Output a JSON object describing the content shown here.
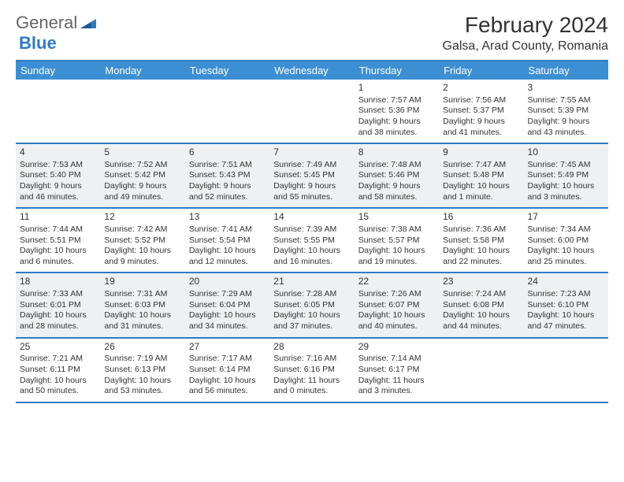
{
  "logo": {
    "part1": "General",
    "part2": "Blue"
  },
  "title": "February 2024",
  "location": "Galsa, Arad County, Romania",
  "colors": {
    "header_bg": "#3d8fd4",
    "border": "#2e7bc4",
    "alt_row": "#eef1f3",
    "text": "#333333",
    "logo_gray": "#666666",
    "logo_blue": "#2e7bc4"
  },
  "day_names": [
    "Sunday",
    "Monday",
    "Tuesday",
    "Wednesday",
    "Thursday",
    "Friday",
    "Saturday"
  ],
  "weeks": [
    {
      "alt": false,
      "cells": [
        {
          "day": "",
          "sunrise": "",
          "sunset": "",
          "daylight1": "",
          "daylight2": ""
        },
        {
          "day": "",
          "sunrise": "",
          "sunset": "",
          "daylight1": "",
          "daylight2": ""
        },
        {
          "day": "",
          "sunrise": "",
          "sunset": "",
          "daylight1": "",
          "daylight2": ""
        },
        {
          "day": "",
          "sunrise": "",
          "sunset": "",
          "daylight1": "",
          "daylight2": ""
        },
        {
          "day": "1",
          "sunrise": "Sunrise: 7:57 AM",
          "sunset": "Sunset: 5:36 PM",
          "daylight1": "Daylight: 9 hours",
          "daylight2": "and 38 minutes."
        },
        {
          "day": "2",
          "sunrise": "Sunrise: 7:56 AM",
          "sunset": "Sunset: 5:37 PM",
          "daylight1": "Daylight: 9 hours",
          "daylight2": "and 41 minutes."
        },
        {
          "day": "3",
          "sunrise": "Sunrise: 7:55 AM",
          "sunset": "Sunset: 5:39 PM",
          "daylight1": "Daylight: 9 hours",
          "daylight2": "and 43 minutes."
        }
      ]
    },
    {
      "alt": true,
      "cells": [
        {
          "day": "4",
          "sunrise": "Sunrise: 7:53 AM",
          "sunset": "Sunset: 5:40 PM",
          "daylight1": "Daylight: 9 hours",
          "daylight2": "and 46 minutes."
        },
        {
          "day": "5",
          "sunrise": "Sunrise: 7:52 AM",
          "sunset": "Sunset: 5:42 PM",
          "daylight1": "Daylight: 9 hours",
          "daylight2": "and 49 minutes."
        },
        {
          "day": "6",
          "sunrise": "Sunrise: 7:51 AM",
          "sunset": "Sunset: 5:43 PM",
          "daylight1": "Daylight: 9 hours",
          "daylight2": "and 52 minutes."
        },
        {
          "day": "7",
          "sunrise": "Sunrise: 7:49 AM",
          "sunset": "Sunset: 5:45 PM",
          "daylight1": "Daylight: 9 hours",
          "daylight2": "and 55 minutes."
        },
        {
          "day": "8",
          "sunrise": "Sunrise: 7:48 AM",
          "sunset": "Sunset: 5:46 PM",
          "daylight1": "Daylight: 9 hours",
          "daylight2": "and 58 minutes."
        },
        {
          "day": "9",
          "sunrise": "Sunrise: 7:47 AM",
          "sunset": "Sunset: 5:48 PM",
          "daylight1": "Daylight: 10 hours",
          "daylight2": "and 1 minute."
        },
        {
          "day": "10",
          "sunrise": "Sunrise: 7:45 AM",
          "sunset": "Sunset: 5:49 PM",
          "daylight1": "Daylight: 10 hours",
          "daylight2": "and 3 minutes."
        }
      ]
    },
    {
      "alt": false,
      "cells": [
        {
          "day": "11",
          "sunrise": "Sunrise: 7:44 AM",
          "sunset": "Sunset: 5:51 PM",
          "daylight1": "Daylight: 10 hours",
          "daylight2": "and 6 minutes."
        },
        {
          "day": "12",
          "sunrise": "Sunrise: 7:42 AM",
          "sunset": "Sunset: 5:52 PM",
          "daylight1": "Daylight: 10 hours",
          "daylight2": "and 9 minutes."
        },
        {
          "day": "13",
          "sunrise": "Sunrise: 7:41 AM",
          "sunset": "Sunset: 5:54 PM",
          "daylight1": "Daylight: 10 hours",
          "daylight2": "and 12 minutes."
        },
        {
          "day": "14",
          "sunrise": "Sunrise: 7:39 AM",
          "sunset": "Sunset: 5:55 PM",
          "daylight1": "Daylight: 10 hours",
          "daylight2": "and 16 minutes."
        },
        {
          "day": "15",
          "sunrise": "Sunrise: 7:38 AM",
          "sunset": "Sunset: 5:57 PM",
          "daylight1": "Daylight: 10 hours",
          "daylight2": "and 19 minutes."
        },
        {
          "day": "16",
          "sunrise": "Sunrise: 7:36 AM",
          "sunset": "Sunset: 5:58 PM",
          "daylight1": "Daylight: 10 hours",
          "daylight2": "and 22 minutes."
        },
        {
          "day": "17",
          "sunrise": "Sunrise: 7:34 AM",
          "sunset": "Sunset: 6:00 PM",
          "daylight1": "Daylight: 10 hours",
          "daylight2": "and 25 minutes."
        }
      ]
    },
    {
      "alt": true,
      "cells": [
        {
          "day": "18",
          "sunrise": "Sunrise: 7:33 AM",
          "sunset": "Sunset: 6:01 PM",
          "daylight1": "Daylight: 10 hours",
          "daylight2": "and 28 minutes."
        },
        {
          "day": "19",
          "sunrise": "Sunrise: 7:31 AM",
          "sunset": "Sunset: 6:03 PM",
          "daylight1": "Daylight: 10 hours",
          "daylight2": "and 31 minutes."
        },
        {
          "day": "20",
          "sunrise": "Sunrise: 7:29 AM",
          "sunset": "Sunset: 6:04 PM",
          "daylight1": "Daylight: 10 hours",
          "daylight2": "and 34 minutes."
        },
        {
          "day": "21",
          "sunrise": "Sunrise: 7:28 AM",
          "sunset": "Sunset: 6:05 PM",
          "daylight1": "Daylight: 10 hours",
          "daylight2": "and 37 minutes."
        },
        {
          "day": "22",
          "sunrise": "Sunrise: 7:26 AM",
          "sunset": "Sunset: 6:07 PM",
          "daylight1": "Daylight: 10 hours",
          "daylight2": "and 40 minutes."
        },
        {
          "day": "23",
          "sunrise": "Sunrise: 7:24 AM",
          "sunset": "Sunset: 6:08 PM",
          "daylight1": "Daylight: 10 hours",
          "daylight2": "and 44 minutes."
        },
        {
          "day": "24",
          "sunrise": "Sunrise: 7:23 AM",
          "sunset": "Sunset: 6:10 PM",
          "daylight1": "Daylight: 10 hours",
          "daylight2": "and 47 minutes."
        }
      ]
    },
    {
      "alt": false,
      "cells": [
        {
          "day": "25",
          "sunrise": "Sunrise: 7:21 AM",
          "sunset": "Sunset: 6:11 PM",
          "daylight1": "Daylight: 10 hours",
          "daylight2": "and 50 minutes."
        },
        {
          "day": "26",
          "sunrise": "Sunrise: 7:19 AM",
          "sunset": "Sunset: 6:13 PM",
          "daylight1": "Daylight: 10 hours",
          "daylight2": "and 53 minutes."
        },
        {
          "day": "27",
          "sunrise": "Sunrise: 7:17 AM",
          "sunset": "Sunset: 6:14 PM",
          "daylight1": "Daylight: 10 hours",
          "daylight2": "and 56 minutes."
        },
        {
          "day": "28",
          "sunrise": "Sunrise: 7:16 AM",
          "sunset": "Sunset: 6:16 PM",
          "daylight1": "Daylight: 11 hours",
          "daylight2": "and 0 minutes."
        },
        {
          "day": "29",
          "sunrise": "Sunrise: 7:14 AM",
          "sunset": "Sunset: 6:17 PM",
          "daylight1": "Daylight: 11 hours",
          "daylight2": "and 3 minutes."
        },
        {
          "day": "",
          "sunrise": "",
          "sunset": "",
          "daylight1": "",
          "daylight2": ""
        },
        {
          "day": "",
          "sunrise": "",
          "sunset": "",
          "daylight1": "",
          "daylight2": ""
        }
      ]
    }
  ]
}
